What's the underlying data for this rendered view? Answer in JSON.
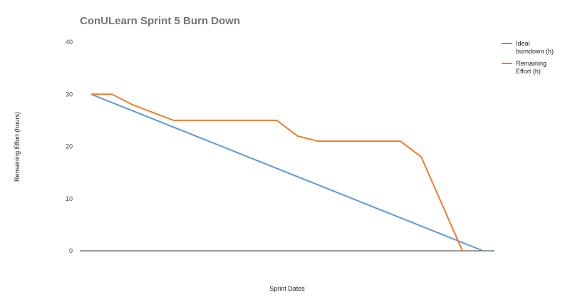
{
  "chart_data": {
    "type": "line",
    "title": "ConULearn Sprint 5 Burn Down",
    "xlabel": "Sprint Dates",
    "ylabel": "Remaining Effort (hours)",
    "ylim": [
      0,
      40
    ],
    "yticks": [
      0,
      10,
      20,
      30,
      40
    ],
    "grid": false,
    "legend_position": "right",
    "x": [
      0,
      1,
      2,
      3,
      4,
      5,
      6,
      7,
      8,
      9,
      10,
      11,
      12,
      13,
      14,
      15,
      16,
      17,
      18,
      19
    ],
    "series": [
      {
        "name": "Ideal burndown (h)",
        "legend_lines": [
          "Ideal",
          "burndown (h)"
        ],
        "color": "#5b9bd5",
        "values": [
          30,
          28.42,
          26.84,
          25.26,
          23.68,
          22.11,
          20.53,
          18.95,
          17.37,
          15.79,
          14.21,
          12.63,
          11.05,
          9.47,
          7.89,
          6.32,
          4.74,
          3.16,
          1.58,
          0
        ]
      },
      {
        "name": "Remaining Effort (h)",
        "legend_lines": [
          "Remaining",
          "Effort (h)"
        ],
        "color": "#ed7d31",
        "values": [
          30,
          30,
          28,
          26.5,
          25,
          25,
          25,
          25,
          25,
          25,
          22,
          21,
          21,
          21,
          21,
          21,
          18,
          9,
          0,
          null
        ]
      }
    ]
  }
}
